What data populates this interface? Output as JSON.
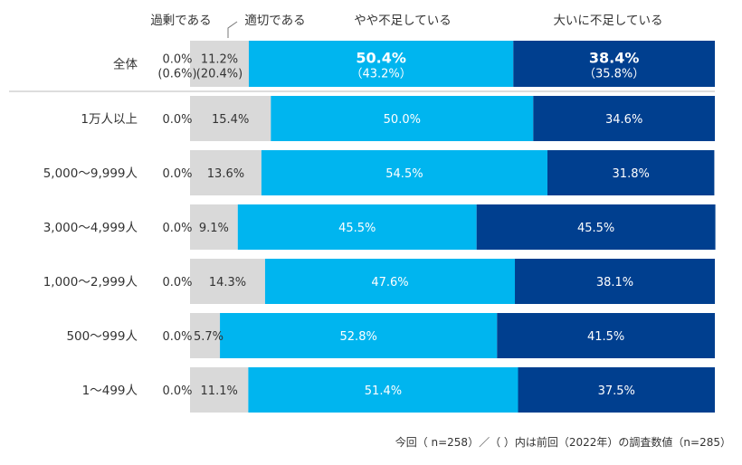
{
  "chart_data": {
    "type": "bar",
    "orientation": "horizontal",
    "stacked": true,
    "normalized_percent": true,
    "legend": [
      "過剰である",
      "適切である",
      "やや不足している",
      "大いに不足している"
    ],
    "categories": [
      "全体",
      "1万人以上",
      "5,000〜9,999人",
      "3,000〜4,999人",
      "1,000〜2,999人",
      "500〜999人",
      "1〜499人"
    ],
    "series": [
      {
        "name": "過剰である",
        "values": [
          0.0,
          0.0,
          0.0,
          0.0,
          0.0,
          0.0,
          0.0
        ],
        "labels": [
          "0.0%",
          "0.0%",
          "0.0%",
          "0.0%",
          "0.0%",
          "0.0%",
          "0.0%"
        ],
        "color": "#d9d9d9"
      },
      {
        "name": "適切である",
        "values": [
          11.2,
          15.4,
          13.6,
          9.1,
          14.3,
          5.7,
          11.1
        ],
        "labels": [
          "11.2%",
          "15.4%",
          "13.6%",
          "9.1%",
          "14.3%",
          "5.7%",
          "11.1%"
        ],
        "color": "#d9d9d9"
      },
      {
        "name": "やや不足している",
        "values": [
          50.4,
          50.0,
          54.5,
          45.5,
          47.6,
          52.8,
          51.4
        ],
        "labels": [
          "50.4%",
          "50.0%",
          "54.5%",
          "45.5%",
          "47.6%",
          "52.8%",
          "51.4%"
        ],
        "color": "#00b5ef"
      },
      {
        "name": "大いに不足している",
        "values": [
          38.4,
          34.6,
          31.8,
          45.5,
          38.1,
          41.5,
          37.5
        ],
        "labels": [
          "38.4%",
          "34.6%",
          "31.8%",
          "45.5%",
          "38.1%",
          "41.5%",
          "37.5%"
        ],
        "color": "#003f8f"
      }
    ],
    "previous_total": {
      "labels": [
        "(0.6%)",
        "(20.4%)",
        "（43.2%）",
        "（35.8%）"
      ]
    },
    "note": "今回（ n=258）／（ ）内は前回（2022年）の調査数値（n=285）"
  }
}
